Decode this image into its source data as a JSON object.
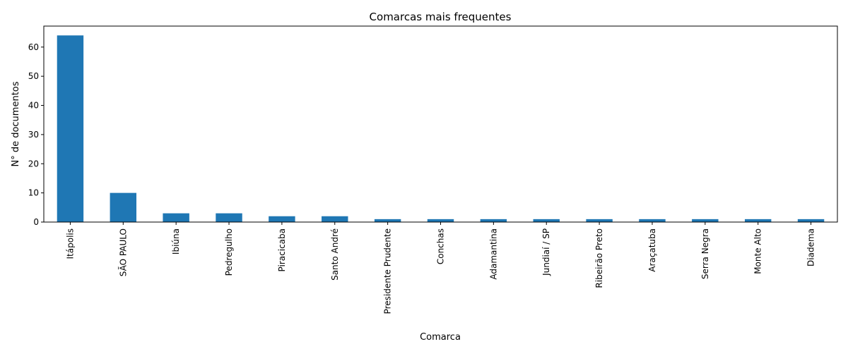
{
  "chart_data": {
    "type": "bar",
    "title": "Comarcas mais frequentes",
    "xlabel": "Comarca",
    "ylabel": "N° de documentos",
    "categories": [
      "Itápolis",
      "SÃO PAULO",
      "Ibiúna",
      "Pedregulho",
      "Piracicaba",
      "Santo André",
      "Presidente Prudente",
      "Conchas",
      "Adamantina",
      "Jundiaí / SP",
      "Ribeirão Preto",
      "Araçatuba",
      "Serra Negra",
      "Monte Alto",
      "Diadema"
    ],
    "values": [
      64,
      10,
      3,
      3,
      2,
      2,
      1,
      1,
      1,
      1,
      1,
      1,
      1,
      1,
      1
    ],
    "ylim": [
      0,
      67.2
    ],
    "yticks": [
      0,
      10,
      20,
      30,
      40,
      50,
      60
    ],
    "grid": false,
    "legend": "none",
    "bar_color": "#1f77b4"
  }
}
